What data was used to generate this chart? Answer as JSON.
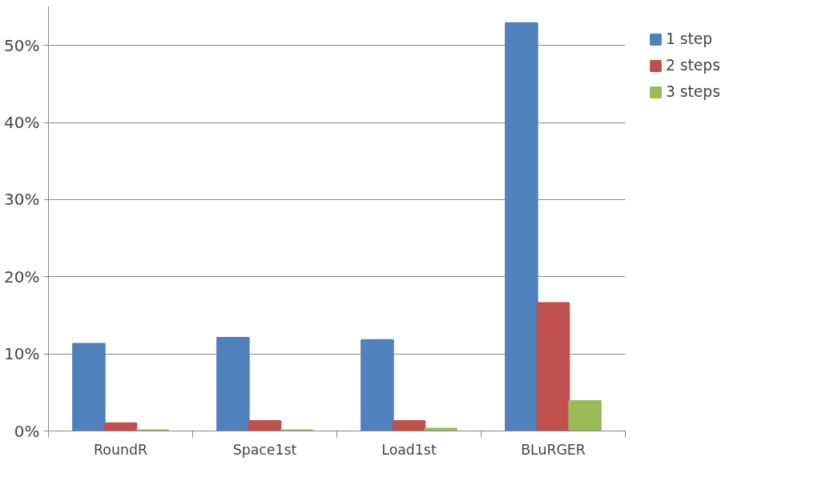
{
  "chart_data": {
    "type": "bar",
    "categories": [
      "RoundR",
      "Space1st",
      "Load1st",
      "BLuRGER"
    ],
    "series": [
      {
        "name": "1 step",
        "color": "#4f81bd",
        "values": [
          11.3,
          12.1,
          11.8,
          52.9
        ]
      },
      {
        "name": "2 steps",
        "color": "#c0504d",
        "values": [
          1.0,
          1.3,
          1.3,
          16.6
        ]
      },
      {
        "name": "3 steps",
        "color": "#9bbb59",
        "values": [
          0.1,
          0.1,
          0.3,
          3.9
        ]
      }
    ],
    "ylim": [
      0,
      55
    ],
    "yticks": [
      {
        "value": 0,
        "label": "0%"
      },
      {
        "value": 10,
        "label": "10%"
      },
      {
        "value": 20,
        "label": "20%"
      },
      {
        "value": 30,
        "label": "30%"
      },
      {
        "value": 40,
        "label": "40%"
      },
      {
        "value": 50,
        "label": "50%"
      }
    ],
    "grid": "y",
    "legend": "right"
  }
}
